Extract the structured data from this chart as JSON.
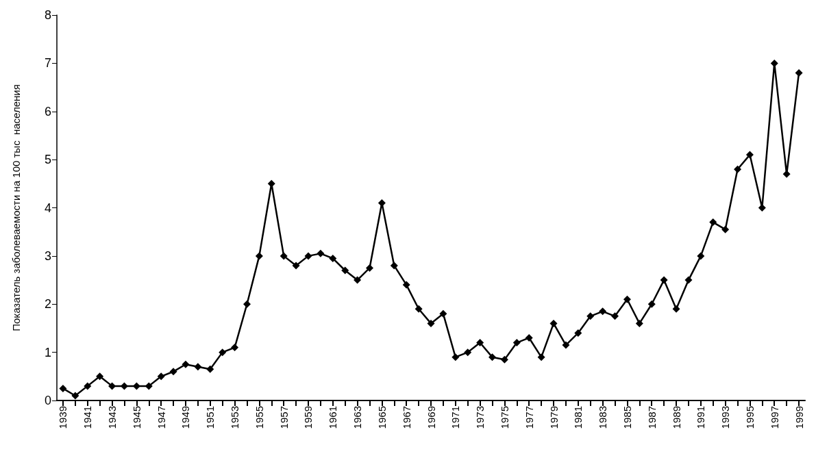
{
  "chart_data": {
    "type": "line",
    "ylabel": "Показатель заболеваемости на 100 тыс  населения",
    "categories": [
      "1939",
      null,
      "1941",
      null,
      "1943",
      null,
      "1945",
      null,
      "1947",
      null,
      "1949",
      null,
      "1951",
      null,
      "1953",
      null,
      "1955",
      null,
      "1957",
      null,
      "1959",
      null,
      "1961",
      null,
      "1963",
      null,
      "1965",
      null,
      "1967",
      null,
      "1969",
      null,
      "1971",
      null,
      "1973",
      null,
      "1975",
      null,
      "1977",
      null,
      "1979",
      null,
      "1981",
      null,
      "1983",
      null,
      "1985",
      null,
      "1987",
      null,
      "1989",
      null,
      "1991",
      null,
      "1993",
      null,
      "1995",
      null,
      "1997",
      null,
      "1999"
    ],
    "series": [
      {
        "color": "#000000",
        "values": [
          0.25,
          0.1,
          0.3,
          0.5,
          0.3,
          0.3,
          0.3,
          0.3,
          0.5,
          0.6,
          0.75,
          0.7,
          0.65,
          1.0,
          1.1,
          2.0,
          3.0,
          4.5,
          3.0,
          2.8,
          3.0,
          3.05,
          2.95,
          2.7,
          2.5,
          2.75,
          4.1,
          2.8,
          2.4,
          1.9,
          1.6,
          1.8,
          0.9,
          1.0,
          1.2,
          0.9,
          0.85,
          1.2,
          1.3,
          0.9,
          1.6,
          1.15,
          1.4,
          1.75,
          1.85,
          1.75,
          2.1,
          1.6,
          2.0,
          2.5,
          1.9,
          2.5,
          3.0,
          3.7,
          3.55,
          4.8,
          5.1,
          4.0,
          7.0,
          4.7,
          6.8
        ]
      }
    ],
    "ylim": [
      0,
      8
    ],
    "yticks": [
      0,
      1,
      2,
      3,
      4,
      5,
      6,
      7,
      8
    ],
    "grid": false,
    "marker": "diamond",
    "line_style": "solid"
  }
}
